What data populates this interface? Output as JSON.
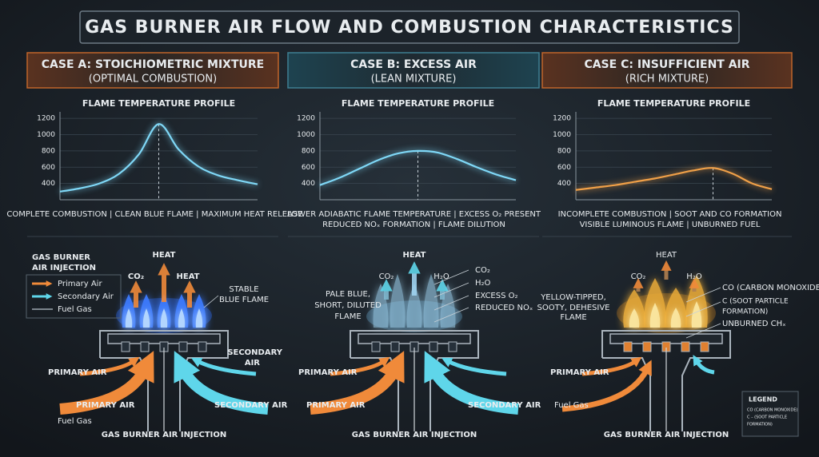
{
  "title": "GAS BURNER AIR FLOW AND COMBUSTION CHARACTERISTICS",
  "cases": [
    {
      "heading": "CASE A: STOICHIOMETRIC MIXTURE",
      "subheading": "(OPTIMAL COMBUSTION)",
      "profile": {
        "title": "FLAME TEMPERATURE PROFILE",
        "ylim": [
          200,
          1280
        ],
        "yticks": [
          400,
          600,
          800,
          1000,
          1200
        ],
        "color": "#7fd8f7",
        "values": [
          300,
          340,
          400,
          520,
          760,
          1130,
          820,
          610,
          500,
          440,
          390
        ]
      },
      "caption": [
        "COMPLETE COMBUSTION | CLEAN BLUE FLAME | MAXIMUM HEAT RELEASE"
      ],
      "diagram": {
        "labels": [
          "HEAT",
          "CO₂",
          "HEAT",
          "STABLE",
          "BLUE FLAME",
          "PRIMARY AIR",
          "PRIMARY AIR",
          "SECONDARY",
          "AIR",
          "SECONDARY AIR",
          "Fuel Gas",
          "GAS BURNER AIR INJECTION"
        ]
      }
    },
    {
      "heading": "CASE B: EXCESS AIR",
      "subheading": "(LEAN MIXTURE)",
      "profile": {
        "title": "FLAME TEMPERATURE PROFILE",
        "ylim": [
          200,
          1280
        ],
        "yticks": [
          400,
          600,
          800,
          1000,
          1200
        ],
        "color": "#7fd8f7",
        "values": [
          380,
          470,
          580,
          690,
          770,
          800,
          780,
          700,
          600,
          510,
          440
        ]
      },
      "caption": [
        "LOWER ADIABATIC FLAME TEMPERATURE | EXCESS O₂ PRESENT",
        "REDUCED NOₓ FORMATION | FLAME DILUTION"
      ],
      "diagram": {
        "labels": [
          "HEAT",
          "CO₂",
          "H₂O",
          "CO₂",
          "H₂O",
          "EXCESS O₂",
          "REDUCED NOₓ",
          "PALE BLUE,",
          "SHORT, DILUTED",
          "FLAME",
          "PRIMARY AIR",
          "PRIMARY AIR",
          "SECONDARY AIR",
          "GAS BURNER AIR INJECTION"
        ]
      }
    },
    {
      "heading": "CASE C: INSUFFICIENT AIR",
      "subheading": "(RICH MIXTURE)",
      "profile": {
        "title": "FLAME TEMPERATURE PROFILE",
        "ylim": [
          200,
          1280
        ],
        "yticks": [
          400,
          600,
          800,
          1000,
          1200
        ],
        "color": "#f0a048",
        "values": [
          320,
          350,
          380,
          420,
          460,
          510,
          560,
          590,
          520,
          400,
          330
        ]
      },
      "caption": [
        "INCOMPLETE COMBUSTION | SOOT AND CO FORMATION",
        "VISIBLE LUMINOUS FLAME | UNBURNED FUEL"
      ],
      "diagram": {
        "labels": [
          "HEAT",
          "CO₂",
          "H₂O",
          "CO (CARBON MONOXIDE)",
          "C (SOOT PARTICLE",
          "FORMATION)",
          "UNBURNED CHₓ",
          "YELLOW-TIPPED,",
          "SOOTY, DEHESIVE",
          "FLAME",
          "PRIMARY AIR",
          "Fuel Gas",
          "GAS BURNER AIR INJECTION"
        ]
      }
    }
  ],
  "air_legend": {
    "title": [
      "GAS BURNER",
      "AIR INJECTION"
    ],
    "items": [
      "Primary Air",
      "Secondary Air",
      "Fuel Gas"
    ]
  },
  "legend": {
    "title": "LEGEND",
    "items": [
      "CO (CARBON MONOXIDE)",
      "C – (SOOT PARTICLE",
      "FORMATION)"
    ]
  }
}
